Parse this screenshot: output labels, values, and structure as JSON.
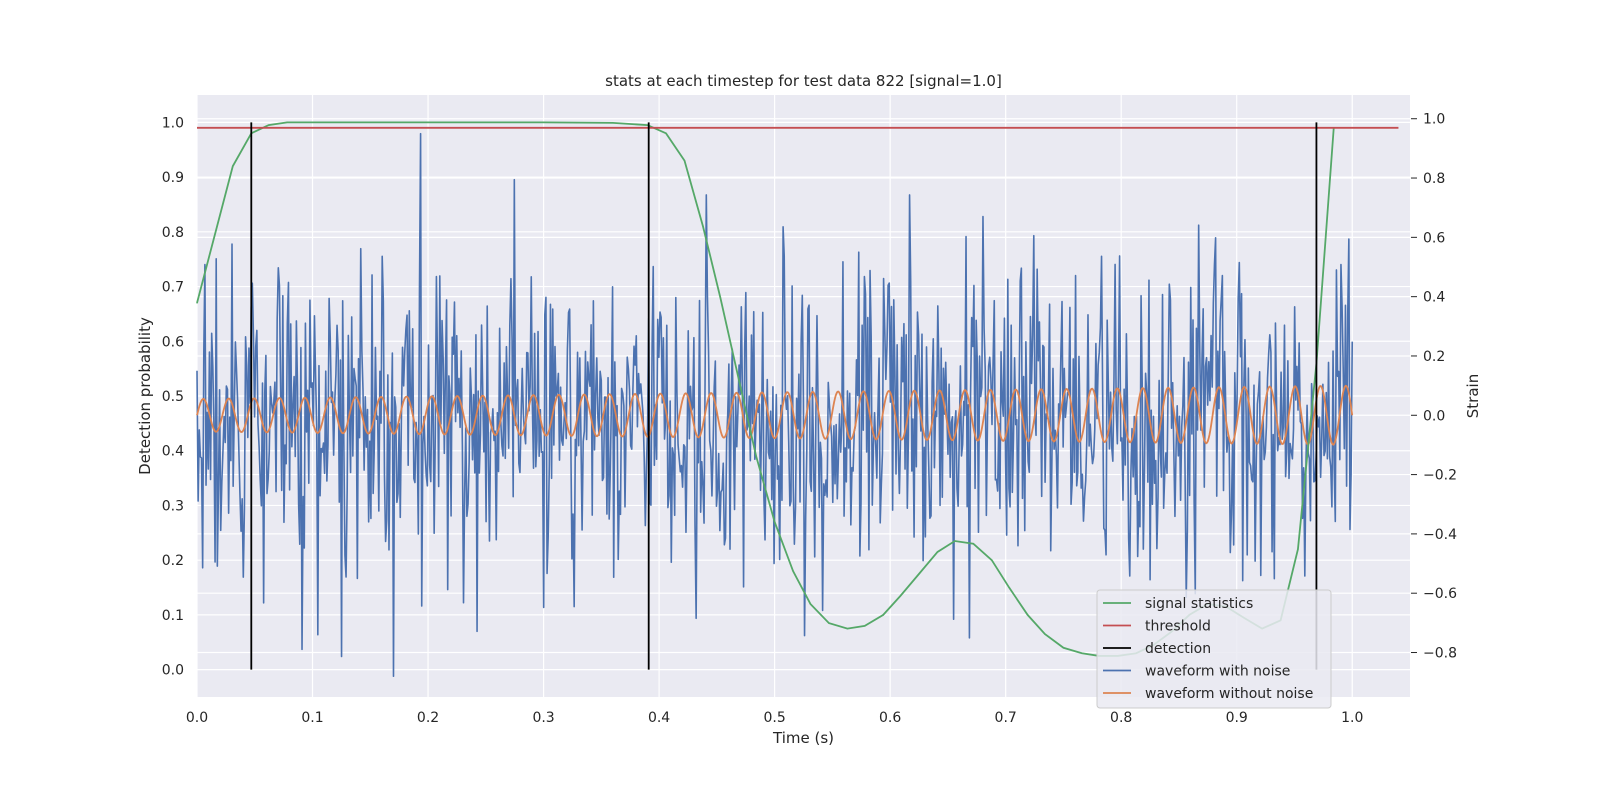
{
  "chart_data": {
    "type": "line",
    "title": "stats at each timestep for test data 822 [signal=1.0]",
    "xlabel": "Time (s)",
    "ylabel": "Detection probability",
    "ylabel_right": "Strain",
    "xlim": [
      0.0,
      1.05
    ],
    "ylim": [
      -0.05,
      1.05
    ],
    "ylim_right": [
      -0.95,
      1.08
    ],
    "x_ticks": [
      "0.0",
      "0.1",
      "0.2",
      "0.3",
      "0.4",
      "0.5",
      "0.6",
      "0.7",
      "0.8",
      "0.9",
      "1.0"
    ],
    "y_ticks": [
      "0.0",
      "0.1",
      "0.2",
      "0.3",
      "0.4",
      "0.5",
      "0.6",
      "0.7",
      "0.8",
      "0.9",
      "1.0"
    ],
    "y_ticks_right": [
      "−0.8",
      "−0.6",
      "−0.4",
      "−0.2",
      "0.0",
      "0.2",
      "0.4",
      "0.6",
      "0.8",
      "1.0"
    ],
    "grid": true,
    "legend_position": "lower-right",
    "colors": {
      "signal_statistics": "#55a868",
      "threshold": "#c44e52",
      "detection": "#000000",
      "waveform_with_noise": "#4c72b0",
      "waveform_without_noise": "#dd8452",
      "plot_background": "#eaeaf2",
      "grid": "#ffffff"
    },
    "legend": [
      {
        "label": "signal statistics",
        "key": "signal_statistics"
      },
      {
        "label": "threshold",
        "key": "threshold"
      },
      {
        "label": "detection",
        "key": "detection"
      },
      {
        "label": "waveform with noise",
        "key": "waveform_with_noise"
      },
      {
        "label": "waveform without noise",
        "key": "waveform_without_noise"
      }
    ],
    "signal_statistics": {
      "x": [
        0.0,
        0.031,
        0.047,
        0.062,
        0.078,
        0.094,
        0.125,
        0.2,
        0.3,
        0.36,
        0.39,
        0.406,
        0.422,
        0.438,
        0.453,
        0.469,
        0.484,
        0.5,
        0.516,
        0.531,
        0.547,
        0.563,
        0.578,
        0.594,
        0.609,
        0.625,
        0.641,
        0.656,
        0.672,
        0.688,
        0.703,
        0.719,
        0.734,
        0.75,
        0.766,
        0.781,
        0.797,
        0.813,
        0.828,
        0.844,
        0.859,
        0.875,
        0.891,
        0.906,
        0.922,
        0.938,
        0.953,
        0.969,
        0.984
      ],
      "y": [
        0.67,
        0.92,
        0.98,
        0.995,
        1.0,
        1.0,
        1.0,
        1.0,
        1.0,
        0.999,
        0.995,
        0.98,
        0.93,
        0.81,
        0.68,
        0.53,
        0.39,
        0.27,
        0.18,
        0.12,
        0.085,
        0.075,
        0.08,
        0.1,
        0.135,
        0.175,
        0.215,
        0.235,
        0.23,
        0.2,
        0.15,
        0.1,
        0.065,
        0.04,
        0.03,
        0.025,
        0.025,
        0.03,
        0.045,
        0.07,
        0.1,
        0.12,
        0.115,
        0.095,
        0.075,
        0.09,
        0.22,
        0.56,
        0.99
      ]
    },
    "threshold": {
      "value": 0.99,
      "x_range": [
        0.0,
        1.04
      ]
    },
    "detections": {
      "x": [
        0.047,
        0.391,
        0.969
      ],
      "y_range": [
        0.0,
        1.0
      ]
    },
    "waveform_without_noise": {
      "t_range": [
        0.0,
        1.0
      ],
      "cycles": 45.5,
      "amplitude_start": 0.055,
      "amplitude_end": 0.1,
      "unit": "strain"
    },
    "waveform_with_noise": {
      "t_range": [
        0.0,
        1.0
      ],
      "samples": 1024,
      "noise_std": 0.25,
      "seed": 822,
      "unit": "strain"
    }
  }
}
